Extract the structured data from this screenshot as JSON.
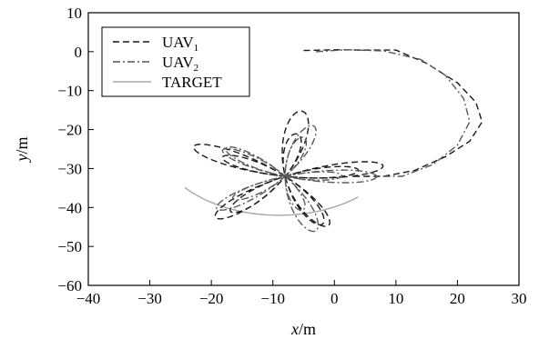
{
  "chart_data": {
    "type": "line",
    "xlabel": {
      "var": "x",
      "unit": "/m"
    },
    "ylabel": {
      "var": "y",
      "unit": "/m"
    },
    "xlim": [
      -40,
      30
    ],
    "ylim": [
      -60,
      10
    ],
    "xticks": [
      -40,
      -30,
      -20,
      -10,
      0,
      10,
      20,
      30
    ],
    "yticks": [
      10,
      0,
      -10,
      -20,
      -30,
      -40,
      -50,
      -60
    ],
    "tick_labels": {
      "x": [
        "−40",
        "−30",
        "−20",
        "−10",
        "0",
        "10",
        "20",
        "30"
      ],
      "y": [
        "10",
        "0",
        "−10",
        "−20",
        "−30",
        "−40",
        "−50",
        "−60"
      ]
    },
    "grid": false,
    "legend": {
      "placement": "top-left",
      "entries": [
        {
          "base": "UAV",
          "sub": "1",
          "style": "dashed",
          "color": "#1a1a1a"
        },
        {
          "base": "UAV",
          "sub": "2",
          "style": "dashdot",
          "color": "#555555"
        },
        {
          "base": "TARGET",
          "sub": "",
          "style": "solid",
          "color": "#a8a8a8"
        }
      ]
    },
    "series": [
      {
        "name": "TARGET",
        "style": "solid",
        "color": "#a8a8a8",
        "target": {
          "center": [
            -9,
            -22
          ],
          "radius": 20,
          "start_deg": 140,
          "end_deg": 50
        }
      },
      {
        "name": "UAV1",
        "style": "dashed",
        "color": "#1a1a1a",
        "entry": [
          [
            -5,
            0.3
          ],
          [
            0,
            0.5
          ],
          [
            5,
            0.4
          ],
          [
            10,
            0.4
          ],
          [
            15,
            -3
          ],
          [
            20,
            -8
          ],
          [
            23,
            -13
          ],
          [
            24,
            -18
          ],
          [
            22,
            -23
          ],
          [
            18,
            -27
          ],
          [
            13,
            -30.5
          ],
          [
            8,
            -32
          ]
        ],
        "rosette": {
          "center": [
            -8,
            -32
          ],
          "base_radius": 14,
          "radius_amplitude": 3,
          "radius_phase": 0.3,
          "petals": 5,
          "phase": 0.8,
          "points": 700
        }
      },
      {
        "name": "UAV2",
        "style": "dashdot",
        "color": "#5a5a5a",
        "entry": [
          [
            -3,
            0
          ],
          [
            2,
            0.5
          ],
          [
            8,
            0.2
          ],
          [
            14,
            -2
          ],
          [
            18,
            -6
          ],
          [
            21,
            -12
          ],
          [
            22,
            -18
          ],
          [
            20,
            -24
          ],
          [
            16,
            -29
          ],
          [
            11,
            -32
          ]
        ],
        "rosette": {
          "center": [
            -8,
            -32
          ],
          "base_radius": 12,
          "radius_amplitude": 3,
          "radius_phase": 1.9,
          "petals": 5,
          "phase": 1.55,
          "points": 700
        }
      }
    ]
  }
}
